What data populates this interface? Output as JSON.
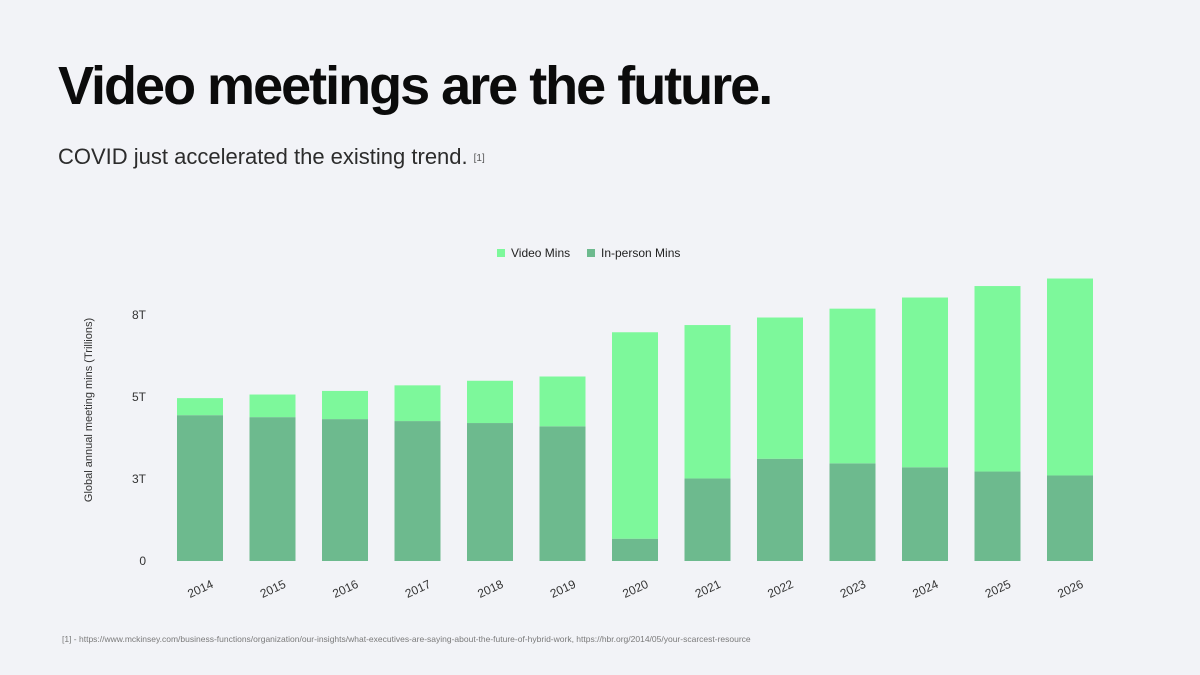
{
  "slide": {
    "title": "Video meetings are the future.",
    "subtitle": "COVID just accelerated the existing trend.",
    "subtitle_ref": "[1]",
    "footnote": "[1] - https://www.mckinsey.com/business-functions/organization/our-insights/what-executives-are-saying-about-the-future-of-hybrid-work, https://hbr.org/2014/05/your-scarcest-resource"
  },
  "chart_data": {
    "type": "bar",
    "stacked": true,
    "categories": [
      "2014",
      "2015",
      "2016",
      "2017",
      "2018",
      "2019",
      "2020",
      "2021",
      "2022",
      "2023",
      "2024",
      "2025",
      "2026"
    ],
    "series": [
      {
        "name": "In-person Mins",
        "color": "#6dba8e",
        "values": [
          4.45,
          4.39,
          4.33,
          4.27,
          4.21,
          4.11,
          0.68,
          2.52,
          3.12,
          2.98,
          2.86,
          2.73,
          2.61
        ]
      },
      {
        "name": "Video Mins",
        "color": "#7df89b",
        "values": [
          0.52,
          0.69,
          0.86,
          1.09,
          1.29,
          1.52,
          6.3,
          4.68,
          4.31,
          4.72,
          5.18,
          5.66,
          6.01
        ]
      }
    ],
    "legend_order": [
      "Video Mins",
      "In-person Mins"
    ],
    "ylabel": "Global annual meeting mins (Trillions)",
    "xlabel": "",
    "ylim": [
      0,
      8.3
    ],
    "yticks": [
      {
        "value": 0,
        "label": "0"
      },
      {
        "value": 2.5,
        "label": "3T"
      },
      {
        "value": 5.0,
        "label": "5T"
      },
      {
        "value": 7.5,
        "label": "8T"
      }
    ],
    "legend_position": "top-center",
    "grid": false
  }
}
